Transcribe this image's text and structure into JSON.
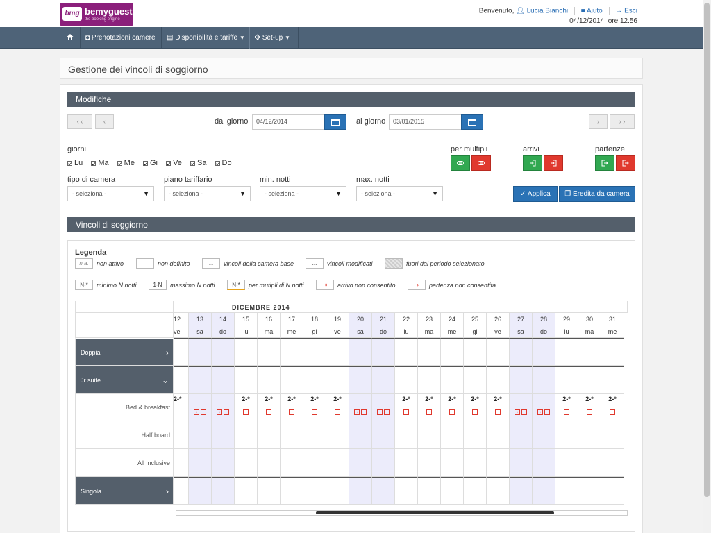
{
  "header": {
    "brand": "bemyguest",
    "brand_mark": "bmg",
    "brand_tag": "the booking engine",
    "welcome": "Benvenuto,",
    "user": "Lucia Bianchi",
    "help": "Aiuto",
    "logout": "Esci",
    "datetime": "04/12/2014, ore 12.56"
  },
  "nav": {
    "home_icon": "home-icon",
    "items": [
      {
        "label": "Prenotazioni camere"
      },
      {
        "label": "Disponibilità e tariffe",
        "caret": "▼"
      },
      {
        "label": "Set-up",
        "caret": "▼"
      }
    ]
  },
  "page": {
    "title": "Gestione dei vincoli di soggiorno"
  },
  "modifiche": {
    "title": "Modifiche",
    "prev_prev": "‹ ‹",
    "prev": "‹",
    "next": "›",
    "next_next": "› ›",
    "from_label": "dal giorno",
    "from_value": "04/12/2014",
    "to_label": "al giorno",
    "to_value": "03/01/2015",
    "days_label": "giorni",
    "days": [
      "Lu",
      "Ma",
      "Me",
      "Gi",
      "Ve",
      "Sa",
      "Do"
    ],
    "multipli_label": "per multipli",
    "arrivi_label": "arrivi",
    "partenze_label": "partenze",
    "tipo_camera_label": "tipo di camera",
    "piano_label": "piano tariffario",
    "min_label": "min. notti",
    "max_label": "max. notti",
    "select_placeholder": "- seleziona -",
    "apply": "Applica",
    "inherit": "Eredita da camera"
  },
  "vincoli": {
    "title": "Vincoli di soggiorno",
    "legend_title": "Legenda",
    "legend": [
      {
        "box": "n.a.",
        "label": "non attivo"
      },
      {
        "box": "",
        "label": "non definito"
      },
      {
        "box": "...",
        "label": "vincoli della camera base"
      },
      {
        "box": "...",
        "label": "vincoli modificati"
      },
      {
        "box": "",
        "label": "fuori dal periodo selezionato"
      },
      {
        "box": "N-*",
        "label": "minimo N notti"
      },
      {
        "box": "1-N",
        "label": "massimo N notti"
      },
      {
        "box": "N-*",
        "label": "per mutipli di N notti"
      },
      {
        "box": "",
        "label": "arrivo non consentito"
      },
      {
        "box": "",
        "label": "partenza non consentita"
      }
    ],
    "month": "DICEMBRE 2014",
    "dates": [
      {
        "n": "12",
        "w": "ve",
        "we": false
      },
      {
        "n": "13",
        "w": "sa",
        "we": true
      },
      {
        "n": "14",
        "w": "do",
        "we": true
      },
      {
        "n": "15",
        "w": "lu",
        "we": false
      },
      {
        "n": "16",
        "w": "ma",
        "we": false
      },
      {
        "n": "17",
        "w": "me",
        "we": false
      },
      {
        "n": "18",
        "w": "gi",
        "we": false
      },
      {
        "n": "19",
        "w": "ve",
        "we": false
      },
      {
        "n": "20",
        "w": "sa",
        "we": true
      },
      {
        "n": "21",
        "w": "do",
        "we": true
      },
      {
        "n": "22",
        "w": "lu",
        "we": false
      },
      {
        "n": "23",
        "w": "ma",
        "we": false
      },
      {
        "n": "24",
        "w": "me",
        "we": false
      },
      {
        "n": "25",
        "w": "gi",
        "we": false
      },
      {
        "n": "26",
        "w": "ve",
        "we": false
      },
      {
        "n": "27",
        "w": "sa",
        "we": true
      },
      {
        "n": "28",
        "w": "do",
        "we": true
      },
      {
        "n": "29",
        "w": "lu",
        "we": false
      },
      {
        "n": "30",
        "w": "ma",
        "we": false
      },
      {
        "n": "31",
        "w": "me",
        "we": false
      }
    ],
    "rooms": [
      {
        "label": "Doppia",
        "type": "room",
        "icon": "chevron-right-icon"
      },
      {
        "label": "Jr suite",
        "type": "room",
        "icon": "chevron-down-icon"
      },
      {
        "label": "Bed & breakfast",
        "type": "plan"
      },
      {
        "label": "Half board",
        "type": "plan"
      },
      {
        "label": "All inclusive",
        "type": "plan"
      },
      {
        "label": "Singola",
        "type": "room",
        "icon": "chevron-right-icon"
      }
    ],
    "bb_values": [
      "2-*",
      "",
      "",
      "2-*",
      "2-*",
      "2-*",
      "2-*",
      "2-*",
      "",
      "",
      "2-*",
      "2-*",
      "2-*",
      "2-*",
      "2-*",
      "",
      "",
      "2-*",
      "2-*",
      "2-*"
    ],
    "bb_marks": [
      [
        "none"
      ],
      [
        "dep",
        "arr"
      ],
      [
        "dep",
        "arr"
      ],
      [
        "arr"
      ],
      [
        "arr"
      ],
      [
        "arr"
      ],
      [
        "arr"
      ],
      [
        "arr"
      ],
      [
        "dep",
        "arr"
      ],
      [
        "dep",
        "arr"
      ],
      [
        "arr"
      ],
      [
        "arr"
      ],
      [
        "arr"
      ],
      [
        "arr"
      ],
      [
        "arr"
      ],
      [
        "dep",
        "arr"
      ],
      [
        "dep",
        "arr"
      ],
      [
        "arr"
      ],
      [
        "arr"
      ],
      [
        "arr"
      ]
    ]
  },
  "colors": {
    "navbar": "#4e6378",
    "primary": "#2a72b5",
    "success": "#31a851",
    "danger": "#e0392e",
    "weekend": "#ececfb",
    "brand": "#8b1f7b"
  }
}
